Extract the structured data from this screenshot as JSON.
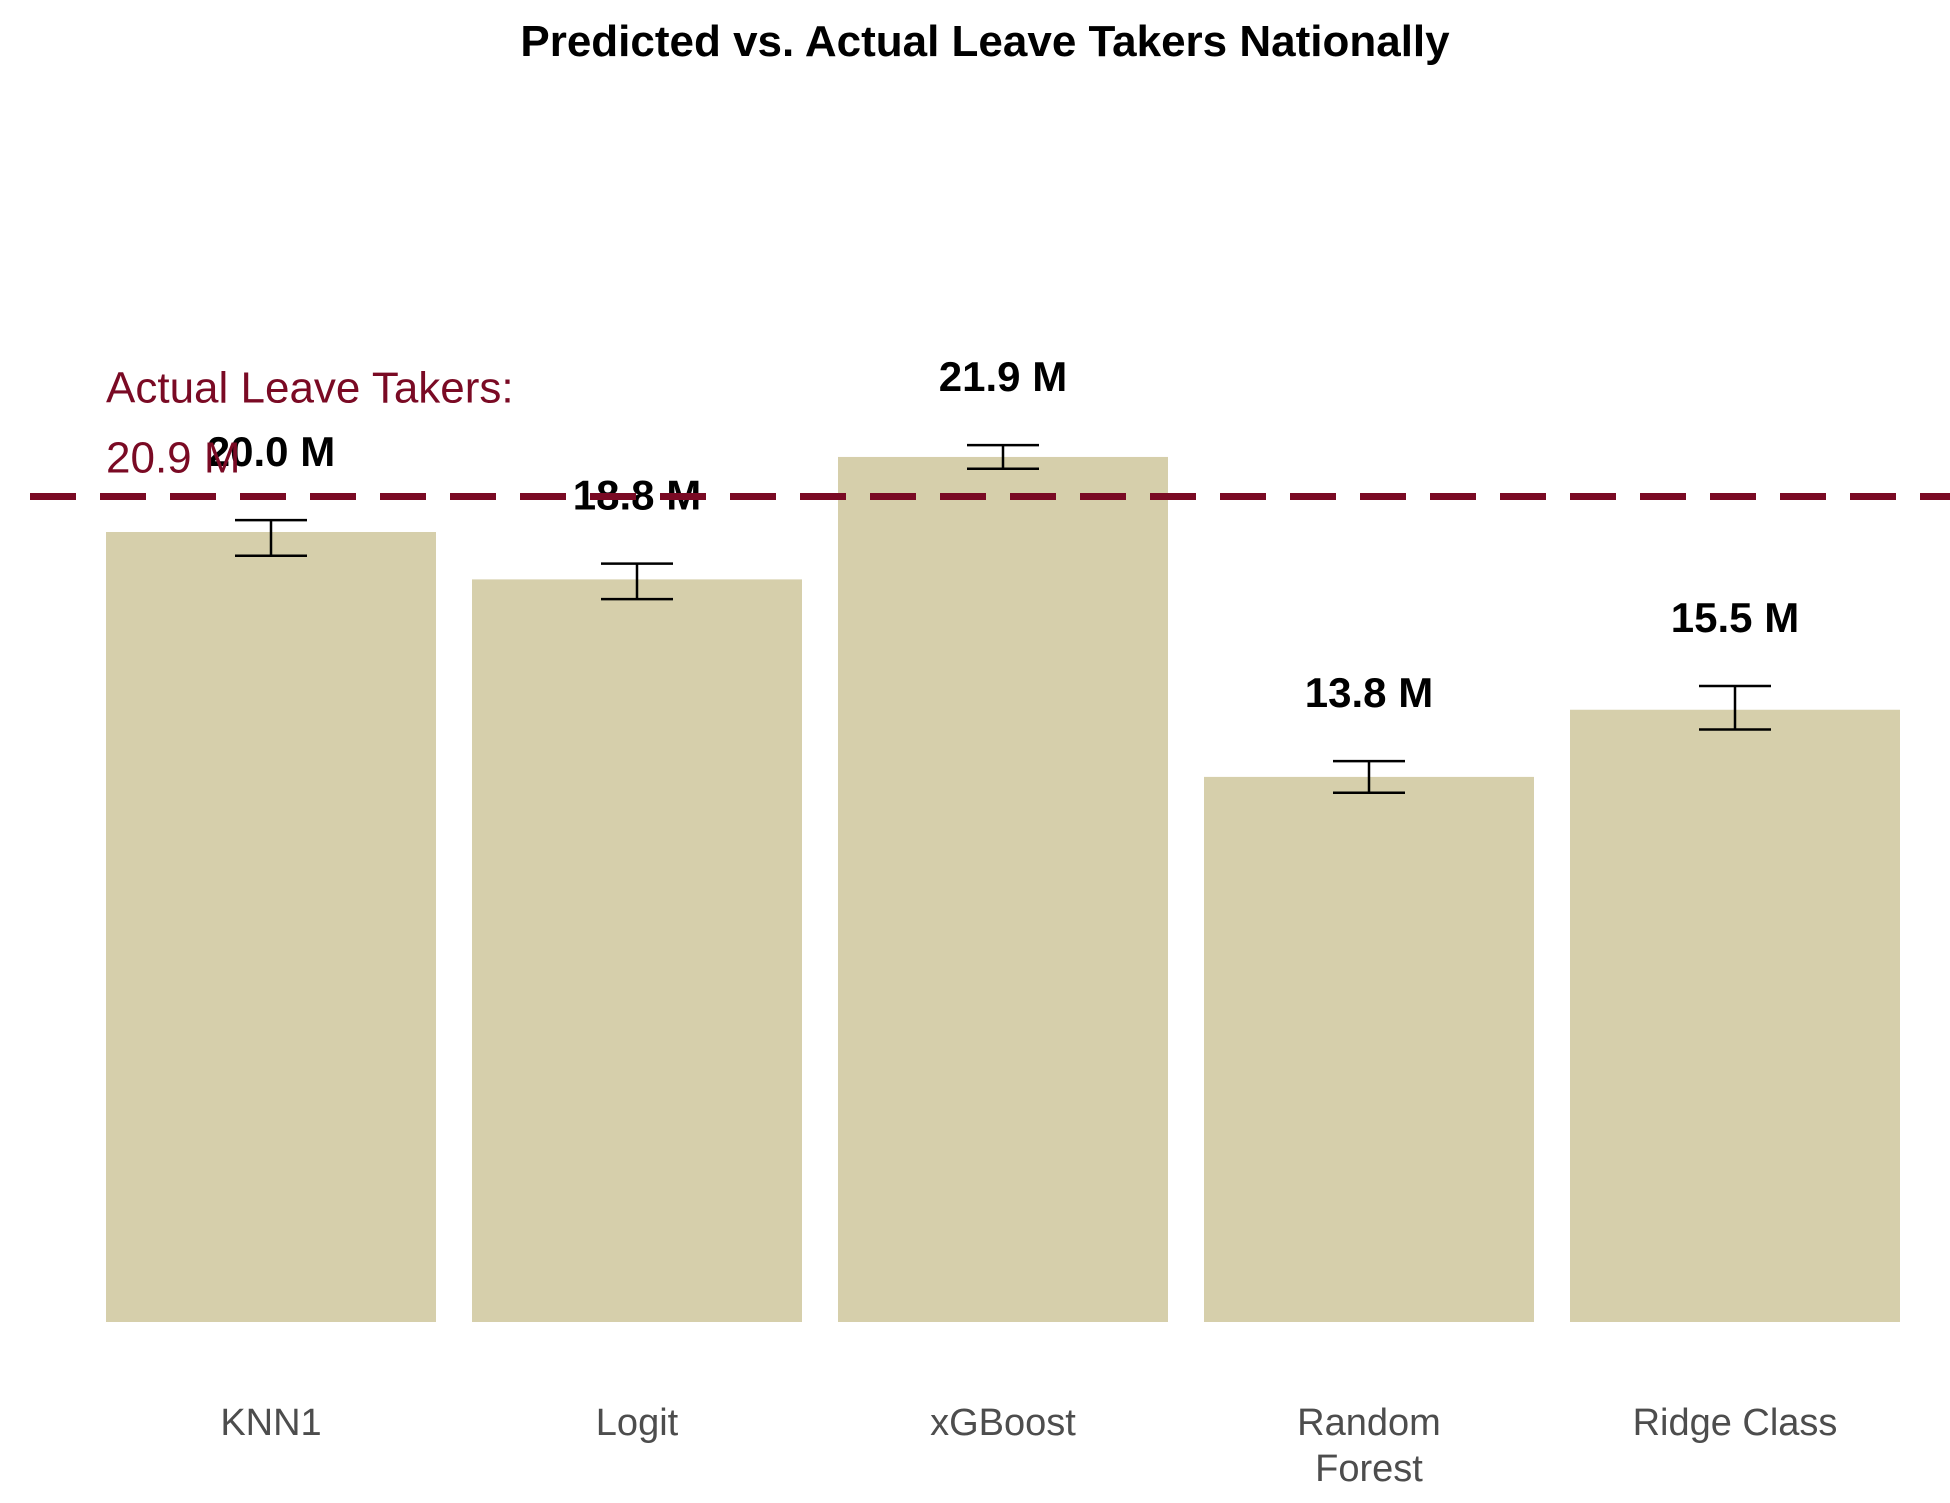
{
  "chart_data": {
    "type": "bar",
    "title": "Predicted vs. Actual Leave Takers Nationally",
    "xlabel": "",
    "ylabel": "",
    "categories": [
      "KNN1",
      "Logit",
      "xGBoost",
      "Random Forest",
      "Ridge Class"
    ],
    "category_lines": [
      [
        "KNN1"
      ],
      [
        "Logit"
      ],
      [
        "xGBoost"
      ],
      [
        "Random",
        "Forest"
      ],
      [
        "Ridge Class"
      ]
    ],
    "values": [
      20.0,
      18.8,
      21.9,
      13.8,
      15.5
    ],
    "value_labels": [
      "20.0 M",
      "18.8 M",
      "21.9 M",
      "13.8 M",
      "15.5 M"
    ],
    "error_bars": [
      {
        "low": 19.4,
        "high": 20.3
      },
      {
        "low": 18.3,
        "high": 19.2
      },
      {
        "low": 21.6,
        "high": 22.2
      },
      {
        "low": 13.4,
        "high": 14.2
      },
      {
        "low": 15.0,
        "high": 16.1
      }
    ],
    "reference_line": {
      "value": 20.9,
      "label_lines": [
        "Actual Leave Takers:",
        "20.9 M"
      ],
      "style": "dashed"
    },
    "ylim": [
      0,
      27.5
    ],
    "grid": false,
    "legend": "none",
    "colors": {
      "bar": "#d6cfab",
      "reference": "#7a0a24",
      "error_bar": "#000000"
    }
  }
}
